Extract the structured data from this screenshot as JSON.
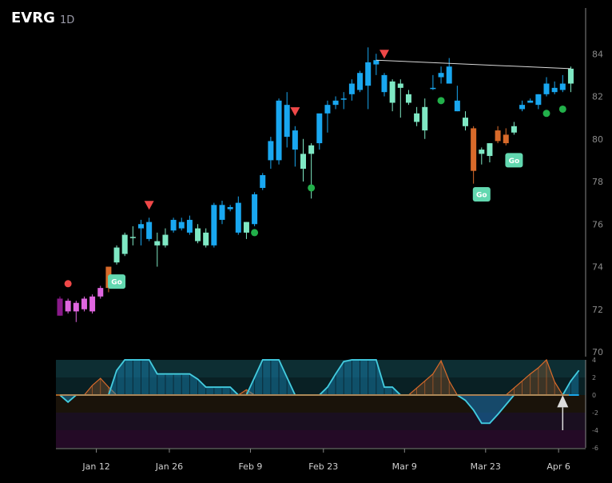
{
  "header": {
    "ticker": "EVRG",
    "timeframe": "1D"
  },
  "colors": {
    "background": "#000000",
    "bull_strong": "#19a7f0",
    "bull_weak": "#7fe8c4",
    "bear_orange": "#d86a2a",
    "early_magenta": "#e066e0",
    "dark_purple": "#8a1a8a",
    "marker_red": "#f04848",
    "marker_green": "#22b04a",
    "go_badge": "#62d8b0",
    "osc_line": "#62e0c8",
    "osc_zero": "#d87a2a"
  },
  "chart_data": [
    {
      "type": "candlestick",
      "title": "",
      "ylim": [
        70,
        86
      ],
      "y_ticks": [
        70,
        72,
        74,
        76,
        78,
        80,
        82,
        84
      ],
      "x_tick_labels": [
        {
          "label": "Jan 12",
          "index": 4
        },
        {
          "label": "Jan 26",
          "index": 13
        },
        {
          "label": "Feb 9",
          "index": 23
        },
        {
          "label": "Feb 23",
          "index": 32
        },
        {
          "label": "Mar 9",
          "index": 42
        },
        {
          "label": "Mar 23",
          "index": 52
        },
        {
          "label": "Apr 6",
          "index": 61
        }
      ],
      "candles": [
        {
          "o": 72.5,
          "h": 72.6,
          "l": 71.7,
          "c": 71.7,
          "t": "dp"
        },
        {
          "o": 71.9,
          "h": 72.5,
          "l": 71.8,
          "c": 72.4,
          "t": "m"
        },
        {
          "o": 71.9,
          "h": 72.4,
          "l": 71.4,
          "c": 72.3,
          "t": "m"
        },
        {
          "o": 72.0,
          "h": 72.6,
          "l": 71.9,
          "c": 72.5,
          "t": "m"
        },
        {
          "o": 71.9,
          "h": 72.7,
          "l": 71.8,
          "c": 72.6,
          "t": "m"
        },
        {
          "o": 72.6,
          "h": 73.1,
          "l": 72.5,
          "c": 73.0,
          "t": "m"
        },
        {
          "o": 73.0,
          "h": 74.0,
          "l": 72.8,
          "c": 74.0,
          "t": "o"
        },
        {
          "o": 74.2,
          "h": 75.0,
          "l": 74.1,
          "c": 74.9,
          "t": "c"
        },
        {
          "o": 74.6,
          "h": 75.6,
          "l": 74.5,
          "c": 75.5,
          "t": "c"
        },
        {
          "o": 75.4,
          "h": 75.9,
          "l": 75.0,
          "c": 75.4,
          "t": "c"
        },
        {
          "o": 75.8,
          "h": 76.2,
          "l": 75.0,
          "c": 76.0,
          "t": "b"
        },
        {
          "o": 76.1,
          "h": 76.3,
          "l": 75.2,
          "c": 75.3,
          "t": "b"
        },
        {
          "o": 75.0,
          "h": 75.6,
          "l": 74.0,
          "c": 75.2,
          "t": "c"
        },
        {
          "o": 75.0,
          "h": 75.8,
          "l": 74.9,
          "c": 75.5,
          "t": "c"
        },
        {
          "o": 75.7,
          "h": 76.3,
          "l": 75.6,
          "c": 76.2,
          "t": "b"
        },
        {
          "o": 76.1,
          "h": 76.3,
          "l": 75.7,
          "c": 75.8,
          "t": "b"
        },
        {
          "o": 76.2,
          "h": 76.4,
          "l": 75.5,
          "c": 75.6,
          "t": "b"
        },
        {
          "o": 75.8,
          "h": 76.0,
          "l": 75.1,
          "c": 75.2,
          "t": "c"
        },
        {
          "o": 75.6,
          "h": 75.8,
          "l": 74.9,
          "c": 75.0,
          "t": "c"
        },
        {
          "o": 75.0,
          "h": 77.0,
          "l": 74.9,
          "c": 76.9,
          "t": "b"
        },
        {
          "o": 76.2,
          "h": 77.1,
          "l": 76.0,
          "c": 76.9,
          "t": "b"
        },
        {
          "o": 76.7,
          "h": 76.9,
          "l": 76.6,
          "c": 76.8,
          "t": "b"
        },
        {
          "o": 77.0,
          "h": 77.3,
          "l": 75.5,
          "c": 75.6,
          "t": "b"
        },
        {
          "o": 75.6,
          "h": 76.1,
          "l": 75.3,
          "c": 76.1,
          "t": "c"
        },
        {
          "o": 76.0,
          "h": 77.5,
          "l": 75.9,
          "c": 77.4,
          "t": "b"
        },
        {
          "o": 77.7,
          "h": 78.4,
          "l": 77.6,
          "c": 78.3,
          "t": "b"
        },
        {
          "o": 79.0,
          "h": 80.1,
          "l": 78.6,
          "c": 79.9,
          "t": "b"
        },
        {
          "o": 79.0,
          "h": 81.9,
          "l": 78.8,
          "c": 81.8,
          "t": "b"
        },
        {
          "o": 81.6,
          "h": 82.2,
          "l": 79.6,
          "c": 80.1,
          "t": "b"
        },
        {
          "o": 79.5,
          "h": 80.6,
          "l": 78.7,
          "c": 80.4,
          "t": "b"
        },
        {
          "o": 79.3,
          "h": 80.0,
          "l": 78.0,
          "c": 78.6,
          "t": "c"
        },
        {
          "o": 79.3,
          "h": 79.8,
          "l": 77.2,
          "c": 79.7,
          "t": "c"
        },
        {
          "o": 79.8,
          "h": 81.1,
          "l": 79.5,
          "c": 81.2,
          "t": "b"
        },
        {
          "o": 81.2,
          "h": 81.8,
          "l": 80.3,
          "c": 81.6,
          "t": "b"
        },
        {
          "o": 81.6,
          "h": 82.0,
          "l": 81.4,
          "c": 81.8,
          "t": "b"
        },
        {
          "o": 81.9,
          "h": 82.2,
          "l": 81.4,
          "c": 81.9,
          "t": "b"
        },
        {
          "o": 82.1,
          "h": 82.8,
          "l": 81.8,
          "c": 82.6,
          "t": "b"
        },
        {
          "o": 82.3,
          "h": 83.2,
          "l": 82.2,
          "c": 83.1,
          "t": "b"
        },
        {
          "o": 82.5,
          "h": 84.3,
          "l": 81.4,
          "c": 83.6,
          "t": "b"
        },
        {
          "o": 83.7,
          "h": 84.0,
          "l": 83.0,
          "c": 83.5,
          "t": "b"
        },
        {
          "o": 83.0,
          "h": 83.1,
          "l": 82.0,
          "c": 82.2,
          "t": "b"
        },
        {
          "o": 81.7,
          "h": 82.8,
          "l": 81.3,
          "c": 82.7,
          "t": "c"
        },
        {
          "o": 82.4,
          "h": 82.8,
          "l": 81.0,
          "c": 82.6,
          "t": "c"
        },
        {
          "o": 81.7,
          "h": 82.3,
          "l": 81.6,
          "c": 82.1,
          "t": "c"
        },
        {
          "o": 80.8,
          "h": 81.5,
          "l": 80.6,
          "c": 81.2,
          "t": "c"
        },
        {
          "o": 80.4,
          "h": 81.9,
          "l": 80.0,
          "c": 81.5,
          "t": "c"
        },
        {
          "o": 82.4,
          "h": 83.0,
          "l": 82.3,
          "c": 82.4,
          "t": "b"
        },
        {
          "o": 82.9,
          "h": 83.4,
          "l": 82.6,
          "c": 83.1,
          "t": "b"
        },
        {
          "o": 82.6,
          "h": 83.8,
          "l": 82.6,
          "c": 83.4,
          "t": "b"
        },
        {
          "o": 81.8,
          "h": 82.5,
          "l": 81.3,
          "c": 81.3,
          "t": "b"
        },
        {
          "o": 81.0,
          "h": 81.3,
          "l": 80.4,
          "c": 80.6,
          "t": "c"
        },
        {
          "o": 80.5,
          "h": 80.6,
          "l": 77.9,
          "c": 78.5,
          "t": "o"
        },
        {
          "o": 79.3,
          "h": 79.6,
          "l": 78.8,
          "c": 79.5,
          "t": "c"
        },
        {
          "o": 79.2,
          "h": 79.8,
          "l": 78.9,
          "c": 79.8,
          "t": "c"
        },
        {
          "o": 80.4,
          "h": 80.6,
          "l": 79.8,
          "c": 79.9,
          "t": "o"
        },
        {
          "o": 80.2,
          "h": 80.5,
          "l": 79.7,
          "c": 79.8,
          "t": "o"
        },
        {
          "o": 80.3,
          "h": 80.8,
          "l": 80.2,
          "c": 80.6,
          "t": "c"
        },
        {
          "o": 81.4,
          "h": 81.8,
          "l": 81.3,
          "c": 81.6,
          "t": "b"
        },
        {
          "o": 81.7,
          "h": 81.9,
          "l": 81.7,
          "c": 81.8,
          "t": "b"
        },
        {
          "o": 81.6,
          "h": 82.1,
          "l": 81.4,
          "c": 82.1,
          "t": "b"
        },
        {
          "o": 82.1,
          "h": 82.9,
          "l": 82.0,
          "c": 82.6,
          "t": "b"
        },
        {
          "o": 82.2,
          "h": 82.7,
          "l": 82.1,
          "c": 82.4,
          "t": "b"
        },
        {
          "o": 82.3,
          "h": 83.0,
          "l": 82.2,
          "c": 82.6,
          "t": "b"
        },
        {
          "o": 82.6,
          "h": 83.4,
          "l": 82.2,
          "c": 83.3,
          "t": "c"
        }
      ],
      "markers": [
        {
          "type": "red_dot",
          "index": 1,
          "value": 73.2
        },
        {
          "type": "go",
          "index": 7,
          "value": 73.3,
          "label": "Go"
        },
        {
          "type": "red_triangle",
          "index": 11,
          "value": 76.9
        },
        {
          "type": "green_dot",
          "index": 24,
          "value": 75.6
        },
        {
          "type": "red_triangle",
          "index": 29,
          "value": 81.3
        },
        {
          "type": "green_dot",
          "index": 31,
          "value": 77.7
        },
        {
          "type": "red_triangle",
          "index": 40,
          "value": 84.0
        },
        {
          "type": "green_dot",
          "index": 47,
          "value": 81.8
        },
        {
          "type": "go",
          "index": 52,
          "value": 77.4,
          "label": "Go"
        },
        {
          "type": "go",
          "index": 56,
          "value": 79.0,
          "label": "Go"
        },
        {
          "type": "green_dot",
          "index": 60,
          "value": 81.2
        },
        {
          "type": "green_dot",
          "index": 62,
          "value": 81.4
        }
      ],
      "trendline": {
        "from_index": 39,
        "from_value": 83.7,
        "to_index": 63,
        "to_value": 83.3
      }
    },
    {
      "type": "area",
      "title": "",
      "ylim": [
        -6,
        4
      ],
      "y_ticks": [
        4,
        2,
        0,
        -2,
        -4,
        -6
      ],
      "x": [
        0,
        1,
        2,
        3,
        4,
        5,
        6,
        7,
        8,
        9,
        10,
        11,
        12,
        13,
        14,
        15,
        16,
        17,
        18,
        19,
        20,
        21,
        22,
        23,
        24,
        25,
        26,
        27,
        28,
        29,
        30,
        31,
        32,
        33,
        34,
        35,
        36,
        37,
        38,
        39,
        40,
        41,
        42,
        43,
        44,
        45,
        46,
        47,
        48,
        49,
        50,
        51,
        52,
        53,
        54,
        55,
        56,
        57,
        58,
        59,
        60,
        61,
        62,
        63,
        64
      ],
      "series": [
        {
          "values": [
            0,
            -0.8,
            0,
            0,
            0,
            0,
            0,
            2.8,
            4,
            4,
            4,
            4,
            2.4,
            2.4,
            2.4,
            2.4,
            2.4,
            1.8,
            0.9,
            0.9,
            0.9,
            0.9,
            0,
            0,
            2,
            4,
            4,
            4,
            2,
            0,
            0,
            0,
            0,
            0.9,
            2.4,
            3.8,
            4,
            4,
            4,
            4,
            0.9,
            0.9,
            0,
            0,
            0,
            0,
            0,
            0,
            0,
            0,
            0,
            0,
            0,
            0,
            0,
            0,
            0,
            0,
            0,
            0,
            0,
            0,
            0,
            1.6,
            2.8
          ]
        },
        {
          "values": [
            0,
            0,
            0,
            0,
            0,
            0,
            0,
            0,
            0,
            0,
            0,
            0,
            0,
            0,
            0,
            0,
            0,
            0,
            0,
            0,
            0,
            0,
            0,
            0,
            0,
            0,
            0,
            0,
            0,
            0,
            0,
            0,
            0,
            0,
            0,
            0,
            0,
            0,
            0,
            0,
            0,
            0,
            0,
            0,
            0,
            0,
            0,
            0,
            0,
            0,
            -0.6,
            -1.7,
            -3.2,
            -3.2,
            -2.2,
            -1.1,
            0,
            0,
            0,
            0,
            0,
            0,
            0,
            0,
            0
          ]
        },
        {
          "values": [
            0,
            0,
            0,
            0,
            1.1,
            1.9,
            0.9,
            0,
            0,
            0,
            0,
            0,
            0,
            0,
            0,
            0,
            0,
            0,
            0,
            0,
            0,
            0,
            0,
            0.6,
            0,
            0,
            0,
            0,
            0,
            0,
            0,
            0,
            0,
            0,
            0,
            0,
            0,
            0,
            0,
            0,
            0,
            0,
            0,
            0,
            0.8,
            1.6,
            2.4,
            3.9,
            1.6,
            0,
            0,
            0,
            0,
            0,
            0,
            0,
            0.8,
            1.6,
            2.4,
            3.1,
            4.0,
            1.5,
            0,
            0,
            0
          ]
        }
      ],
      "marker": {
        "type": "arrow_up",
        "index": 62
      }
    }
  ]
}
